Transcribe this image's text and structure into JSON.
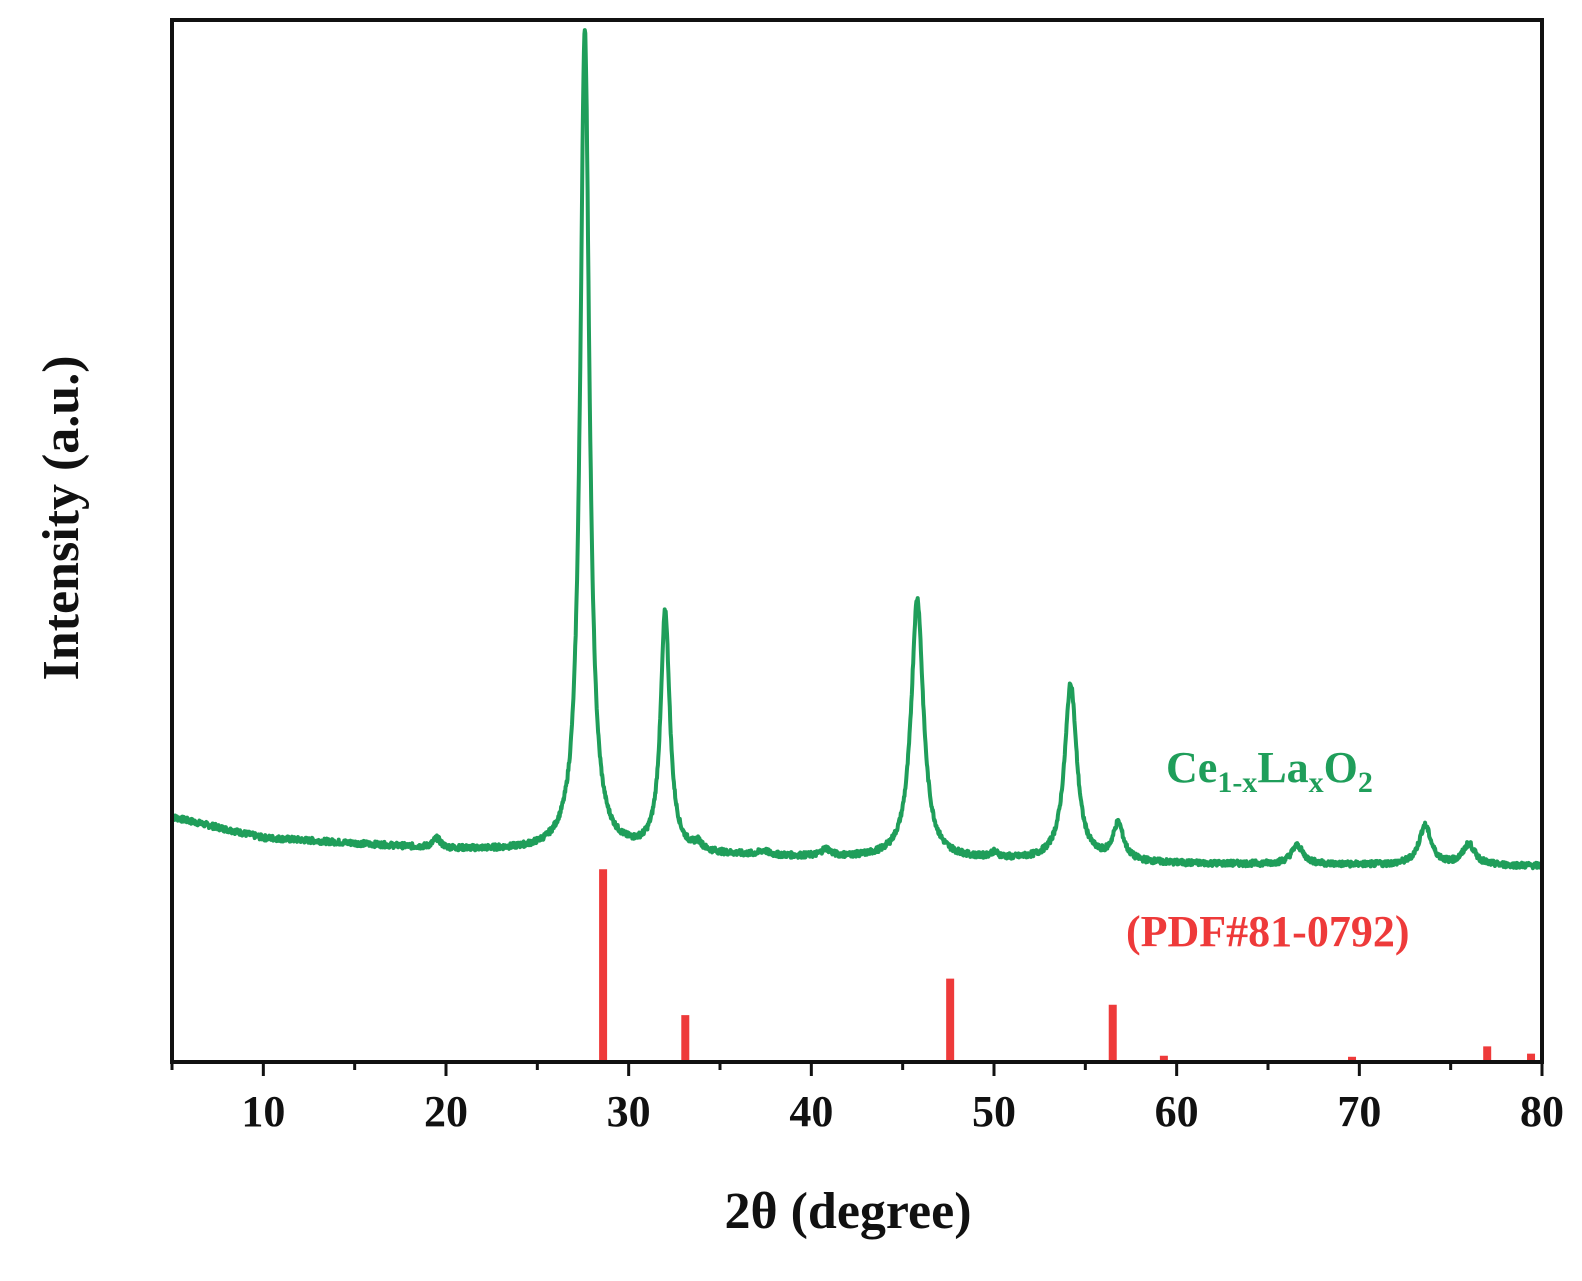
{
  "chart_data": {
    "type": "line",
    "xlabel": "2θ (degree)",
    "ylabel": "Intensity (a.u.)",
    "xlim": [
      5,
      80
    ],
    "ylim": [
      0,
      100
    ],
    "x_ticks": [
      "10",
      "20",
      "30",
      "40",
      "50",
      "60",
      "70",
      "80"
    ],
    "colors": {
      "pattern": "#1f9e5a",
      "reference": "#ee3a3a",
      "frame": "#111111"
    },
    "series": [
      {
        "name": "Ce1-xLaxO2",
        "label_parts": {
          "base1": "Ce",
          "sub1": "1-x",
          "base2": "La",
          "sub2": "x",
          "base3": "O",
          "sub3": "2"
        },
        "kind": "line",
        "baseline": [
          [
            5,
            23.5
          ],
          [
            10,
            21.5
          ],
          [
            20,
            20.4
          ],
          [
            30,
            20.0
          ],
          [
            40,
            19.6
          ],
          [
            50,
            19.3
          ],
          [
            60,
            19.0
          ],
          [
            70,
            18.9
          ],
          [
            80,
            18.8
          ]
        ],
        "peaks": [
          {
            "x": 19.5,
            "height": 0.9,
            "width": 0.25
          },
          {
            "x": 27.6,
            "height": 79.0,
            "width": 0.3
          },
          {
            "x": 32.0,
            "height": 23.0,
            "width": 0.3
          },
          {
            "x": 33.8,
            "height": 0.7,
            "width": 0.25
          },
          {
            "x": 37.4,
            "height": 0.4,
            "width": 0.3
          },
          {
            "x": 40.8,
            "height": 0.7,
            "width": 0.3
          },
          {
            "x": 45.8,
            "height": 25.0,
            "width": 0.4
          },
          {
            "x": 50.0,
            "height": 0.5,
            "width": 0.3
          },
          {
            "x": 54.2,
            "height": 17.0,
            "width": 0.4
          },
          {
            "x": 56.8,
            "height": 3.5,
            "width": 0.35
          },
          {
            "x": 66.6,
            "height": 1.8,
            "width": 0.4
          },
          {
            "x": 73.6,
            "height": 3.8,
            "width": 0.4
          },
          {
            "x": 76.0,
            "height": 2.0,
            "width": 0.4
          }
        ]
      },
      {
        "name": "(PDF#81-0792)",
        "kind": "stick",
        "x": [
          28.6,
          33.1,
          47.6,
          56.5,
          59.3,
          69.6,
          77.0,
          79.4
        ],
        "values": [
          18.5,
          4.5,
          8.0,
          5.5,
          0.6,
          0.5,
          1.5,
          0.8
        ]
      }
    ]
  }
}
